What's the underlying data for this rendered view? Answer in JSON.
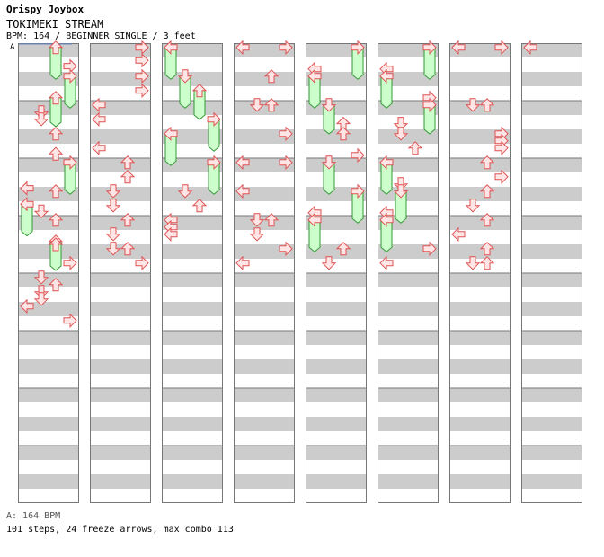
{
  "header": {
    "brand": "Qrispy Joybox",
    "song_title": "TOKIMEKI STREAM",
    "meta": "BPM: 164 / BEGINNER SINGLE / 3 feet",
    "marker": "A"
  },
  "footer": {
    "bpm_label": "A: 164 BPM",
    "stats": "101 steps, 24 freeze arrows, max combo 113"
  },
  "colors": {
    "stripe": "#cccccc",
    "border": "#777777",
    "arrow_fill": "#ffe6e6",
    "arrow_stroke": "#e05050",
    "freeze_fill": "#ccffcc",
    "freeze_stroke": "#339933"
  },
  "chart_data": {
    "type": "step-chart",
    "lanes": [
      "left",
      "down",
      "up",
      "right"
    ],
    "columns": 8,
    "measures_per_column": 8,
    "steps": [
      {
        "c": 0,
        "m": 0,
        "r": 0.3,
        "dir": "up",
        "freeze": 0.7
      },
      {
        "c": 0,
        "m": 1,
        "r": 1.6,
        "dir": "right"
      },
      {
        "c": 0,
        "m": 1,
        "r": 2.3,
        "dir": "right",
        "freeze": 0.7
      },
      {
        "c": 0,
        "m": 2,
        "r": 3.8,
        "dir": "up",
        "freeze": 0.6
      },
      {
        "c": 0,
        "m": 2,
        "r": 4.8,
        "dir": "down"
      },
      {
        "c": 0,
        "m": 2,
        "r": 5.3,
        "dir": "down"
      },
      {
        "c": 0,
        "m": 2,
        "r": 6.3,
        "dir": "up"
      },
      {
        "c": 0,
        "m": 3,
        "r": 7.7,
        "dir": "up"
      },
      {
        "c": 0,
        "m": 3,
        "r": 8.3,
        "dir": "right",
        "freeze": 0.7
      },
      {
        "c": 0,
        "m": 4,
        "r": 10.1,
        "dir": "left"
      },
      {
        "c": 0,
        "m": 4,
        "r": 10.3,
        "dir": "up"
      },
      {
        "c": 0,
        "m": 5,
        "r": 11.2,
        "dir": "left",
        "freeze": 0.7
      },
      {
        "c": 0,
        "m": 5,
        "r": 11.7,
        "dir": "down"
      },
      {
        "c": 0,
        "m": 5,
        "r": 12.3,
        "dir": "up"
      },
      {
        "c": 0,
        "m": 6,
        "r": 13.8,
        "dir": "up",
        "freeze": 0.6
      },
      {
        "c": 0,
        "m": 6,
        "r": 14.0,
        "dir": "up"
      },
      {
        "c": 0,
        "m": 6,
        "r": 15.3,
        "dir": "right"
      },
      {
        "c": 0,
        "m": 7,
        "r": 16.3,
        "dir": "down"
      },
      {
        "c": 0,
        "m": 7,
        "r": 16.8,
        "dir": "up"
      },
      {
        "c": 0,
        "m": 7,
        "r": 17.3,
        "dir": "down"
      },
      {
        "c": 0,
        "m": 7,
        "r": 17.8,
        "dir": "down"
      },
      {
        "c": 0,
        "m": 7,
        "r": 18.3,
        "dir": "left"
      },
      {
        "c": 0,
        "m": 7,
        "r": 19.3,
        "dir": "right"
      },
      {
        "c": 1,
        "m": 0,
        "r": 0.3,
        "dir": "right"
      },
      {
        "c": 1,
        "m": 0,
        "r": 1.2,
        "dir": "right"
      },
      {
        "c": 1,
        "m": 1,
        "r": 2.3,
        "dir": "right"
      },
      {
        "c": 1,
        "m": 1,
        "r": 3.3,
        "dir": "right"
      },
      {
        "c": 1,
        "m": 2,
        "r": 4.3,
        "dir": "left"
      },
      {
        "c": 1,
        "m": 2,
        "r": 5.3,
        "dir": "left"
      },
      {
        "c": 1,
        "m": 3,
        "r": 7.3,
        "dir": "left"
      },
      {
        "c": 1,
        "m": 4,
        "r": 8.3,
        "dir": "up"
      },
      {
        "c": 1,
        "m": 4,
        "r": 9.3,
        "dir": "up"
      },
      {
        "c": 1,
        "m": 5,
        "r": 10.3,
        "dir": "down"
      },
      {
        "c": 1,
        "m": 5,
        "r": 11.3,
        "dir": "down"
      },
      {
        "c": 1,
        "m": 6,
        "r": 12.3,
        "dir": "up"
      },
      {
        "c": 1,
        "m": 6,
        "r": 13.3,
        "dir": "down"
      },
      {
        "c": 1,
        "m": 7,
        "r": 14.3,
        "dir": "down"
      },
      {
        "c": 1,
        "m": 7,
        "r": 14.3,
        "dir": "up"
      },
      {
        "c": 1,
        "m": 7,
        "r": 15.3,
        "dir": "right"
      },
      {
        "c": 2,
        "m": 0,
        "r": 0.3,
        "dir": "left",
        "freeze": 0.7
      },
      {
        "c": 2,
        "m": 1,
        "r": 2.3,
        "dir": "down",
        "freeze": 0.7
      },
      {
        "c": 2,
        "m": 2,
        "r": 3.3,
        "dir": "up",
        "freeze": 0.6
      },
      {
        "c": 2,
        "m": 3,
        "r": 5.3,
        "dir": "right",
        "freeze": 0.7
      },
      {
        "c": 2,
        "m": 4,
        "r": 6.3,
        "dir": "left",
        "freeze": 0.7
      },
      {
        "c": 2,
        "m": 5,
        "r": 8.3,
        "dir": "right",
        "freeze": 0.7
      },
      {
        "c": 2,
        "m": 6,
        "r": 10.3,
        "dir": "down"
      },
      {
        "c": 2,
        "m": 6,
        "r": 11.3,
        "dir": "up"
      },
      {
        "c": 2,
        "m": 7,
        "r": 12.3,
        "dir": "left"
      },
      {
        "c": 2,
        "m": 7,
        "r": 12.8,
        "dir": "left"
      },
      {
        "c": 2,
        "m": 7,
        "r": 13.3,
        "dir": "left"
      },
      {
        "c": 3,
        "m": 0,
        "r": 0.3,
        "dir": "left"
      },
      {
        "c": 3,
        "m": 0,
        "r": 0.3,
        "dir": "right"
      },
      {
        "c": 3,
        "m": 1,
        "r": 2.3,
        "dir": "up"
      },
      {
        "c": 3,
        "m": 2,
        "r": 4.3,
        "dir": "down"
      },
      {
        "c": 3,
        "m": 2,
        "r": 4.3,
        "dir": "up"
      },
      {
        "c": 3,
        "m": 3,
        "r": 6.3,
        "dir": "right"
      },
      {
        "c": 3,
        "m": 4,
        "r": 8.3,
        "dir": "left"
      },
      {
        "c": 3,
        "m": 4,
        "r": 8.3,
        "dir": "right"
      },
      {
        "c": 3,
        "m": 5,
        "r": 10.3,
        "dir": "left"
      },
      {
        "c": 3,
        "m": 6,
        "r": 12.3,
        "dir": "down"
      },
      {
        "c": 3,
        "m": 6,
        "r": 12.3,
        "dir": "up"
      },
      {
        "c": 3,
        "m": 6,
        "r": 13.3,
        "dir": "down"
      },
      {
        "c": 3,
        "m": 7,
        "r": 14.3,
        "dir": "right"
      },
      {
        "c": 3,
        "m": 7,
        "r": 15.3,
        "dir": "left"
      },
      {
        "c": 4,
        "m": 0,
        "r": 0.3,
        "dir": "right",
        "freeze": 0.7
      },
      {
        "c": 4,
        "m": 1,
        "r": 1.8,
        "dir": "left"
      },
      {
        "c": 4,
        "m": 1,
        "r": 2.3,
        "dir": "left",
        "freeze": 0.7
      },
      {
        "c": 4,
        "m": 2,
        "r": 4.3,
        "dir": "down",
        "freeze": 0.6
      },
      {
        "c": 4,
        "m": 2,
        "r": 5.6,
        "dir": "up"
      },
      {
        "c": 4,
        "m": 2,
        "r": 6.3,
        "dir": "up"
      },
      {
        "c": 4,
        "m": 3,
        "r": 7.8,
        "dir": "right"
      },
      {
        "c": 4,
        "m": 4,
        "r": 8.3,
        "dir": "down",
        "freeze": 0.7
      },
      {
        "c": 4,
        "m": 5,
        "r": 10.3,
        "dir": "right",
        "freeze": 0.7
      },
      {
        "c": 4,
        "m": 6,
        "r": 11.8,
        "dir": "left"
      },
      {
        "c": 4,
        "m": 6,
        "r": 12.3,
        "dir": "left",
        "freeze": 0.7
      },
      {
        "c": 4,
        "m": 7,
        "r": 14.3,
        "dir": "up"
      },
      {
        "c": 4,
        "m": 7,
        "r": 15.3,
        "dir": "down"
      },
      {
        "c": 5,
        "m": 0,
        "r": 0.3,
        "dir": "right",
        "freeze": 0.7
      },
      {
        "c": 5,
        "m": 1,
        "r": 1.8,
        "dir": "left"
      },
      {
        "c": 5,
        "m": 1,
        "r": 2.3,
        "dir": "left",
        "freeze": 0.7
      },
      {
        "c": 5,
        "m": 2,
        "r": 3.8,
        "dir": "right"
      },
      {
        "c": 5,
        "m": 2,
        "r": 4.3,
        "dir": "right",
        "freeze": 0.6
      },
      {
        "c": 5,
        "m": 3,
        "r": 5.6,
        "dir": "down"
      },
      {
        "c": 5,
        "m": 3,
        "r": 6.3,
        "dir": "down"
      },
      {
        "c": 5,
        "m": 3,
        "r": 7.3,
        "dir": "up"
      },
      {
        "c": 5,
        "m": 4,
        "r": 8.3,
        "dir": "left",
        "freeze": 0.7
      },
      {
        "c": 5,
        "m": 5,
        "r": 9.8,
        "dir": "down"
      },
      {
        "c": 5,
        "m": 5,
        "r": 10.3,
        "dir": "down",
        "freeze": 0.7
      },
      {
        "c": 5,
        "m": 6,
        "r": 11.8,
        "dir": "left"
      },
      {
        "c": 5,
        "m": 6,
        "r": 12.3,
        "dir": "left",
        "freeze": 0.7
      },
      {
        "c": 5,
        "m": 7,
        "r": 14.3,
        "dir": "right"
      },
      {
        "c": 5,
        "m": 7,
        "r": 15.3,
        "dir": "left"
      },
      {
        "c": 6,
        "m": 0,
        "r": 0.3,
        "dir": "left"
      },
      {
        "c": 6,
        "m": 0,
        "r": 0.3,
        "dir": "right"
      },
      {
        "c": 6,
        "m": 2,
        "r": 4.3,
        "dir": "down"
      },
      {
        "c": 6,
        "m": 2,
        "r": 4.3,
        "dir": "up"
      },
      {
        "c": 6,
        "m": 3,
        "r": 6.3,
        "dir": "right"
      },
      {
        "c": 6,
        "m": 3,
        "r": 6.8,
        "dir": "right"
      },
      {
        "c": 6,
        "m": 3,
        "r": 7.3,
        "dir": "right"
      },
      {
        "c": 6,
        "m": 4,
        "r": 8.3,
        "dir": "up"
      },
      {
        "c": 6,
        "m": 4,
        "r": 9.3,
        "dir": "right"
      },
      {
        "c": 6,
        "m": 5,
        "r": 10.3,
        "dir": "up"
      },
      {
        "c": 6,
        "m": 5,
        "r": 11.3,
        "dir": "down"
      },
      {
        "c": 6,
        "m": 6,
        "r": 12.3,
        "dir": "up"
      },
      {
        "c": 6,
        "m": 6,
        "r": 13.3,
        "dir": "left"
      },
      {
        "c": 6,
        "m": 7,
        "r": 14.3,
        "dir": "up"
      },
      {
        "c": 6,
        "m": 7,
        "r": 15.3,
        "dir": "down"
      },
      {
        "c": 6,
        "m": 7,
        "r": 15.3,
        "dir": "up"
      },
      {
        "c": 7,
        "m": 0,
        "r": 0.3,
        "dir": "left"
      }
    ]
  }
}
